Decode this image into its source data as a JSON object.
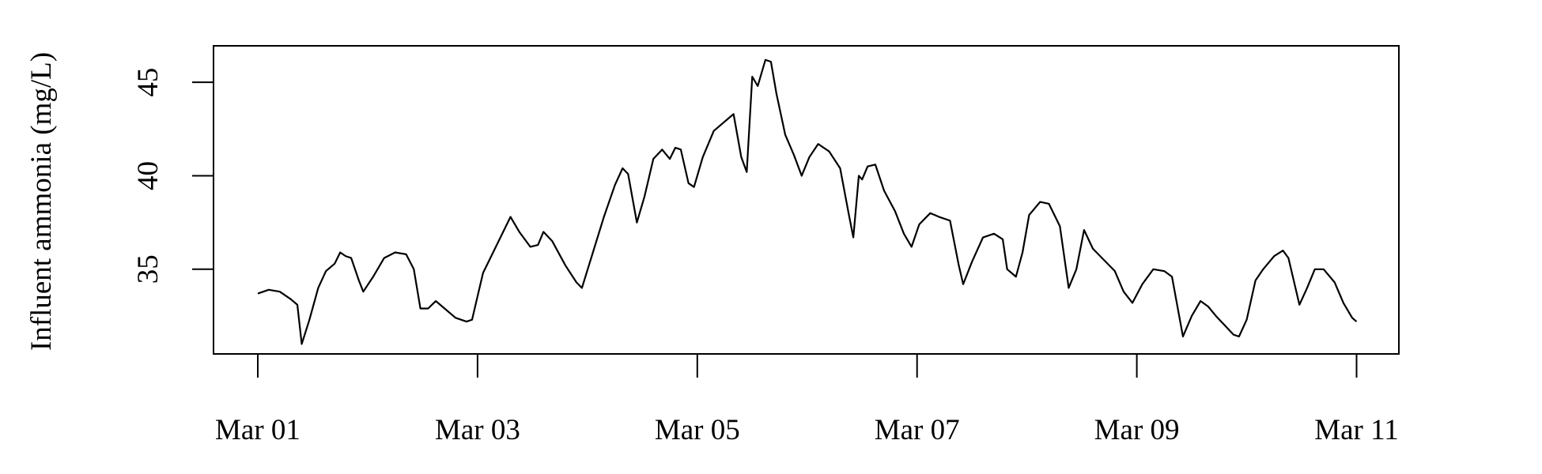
{
  "chart_data": {
    "type": "line",
    "ylabel": "Influent ammonia (mg/L)",
    "color": "#000000",
    "x": [
      1.0,
      1.1,
      1.2,
      1.3,
      1.36,
      1.4,
      1.47,
      1.55,
      1.62,
      1.7,
      1.75,
      1.8,
      1.85,
      1.92,
      1.96,
      2.05,
      2.15,
      2.25,
      2.35,
      2.42,
      2.48,
      2.55,
      2.62,
      2.7,
      2.8,
      2.9,
      2.95,
      3.05,
      3.15,
      3.25,
      3.3,
      3.38,
      3.48,
      3.55,
      3.6,
      3.68,
      3.8,
      3.9,
      3.95,
      4.05,
      4.15,
      4.25,
      4.32,
      4.37,
      4.45,
      4.52,
      4.6,
      4.68,
      4.75,
      4.8,
      4.85,
      4.92,
      4.97,
      5.05,
      5.15,
      5.25,
      5.33,
      5.4,
      5.45,
      5.5,
      5.55,
      5.62,
      5.67,
      5.72,
      5.8,
      5.88,
      5.95,
      6.02,
      6.1,
      6.2,
      6.3,
      6.38,
      6.42,
      6.47,
      6.5,
      6.55,
      6.62,
      6.7,
      6.8,
      6.88,
      6.95,
      7.02,
      7.12,
      7.2,
      7.3,
      7.38,
      7.42,
      7.5,
      7.6,
      7.7,
      7.78,
      7.82,
      7.9,
      7.96,
      8.02,
      8.12,
      8.2,
      8.3,
      8.38,
      8.45,
      8.52,
      8.6,
      8.7,
      8.8,
      8.88,
      8.96,
      9.05,
      9.15,
      9.25,
      9.32,
      9.42,
      9.5,
      9.58,
      9.65,
      9.72,
      9.8,
      9.88,
      9.93,
      10.0,
      10.08,
      10.15,
      10.25,
      10.33,
      10.38,
      10.48,
      10.55,
      10.62,
      10.7,
      10.8,
      10.88,
      10.96,
      11.0
    ],
    "values": [
      33.7,
      33.9,
      33.8,
      33.4,
      33.1,
      31.0,
      32.3,
      34.0,
      34.9,
      35.3,
      35.9,
      35.7,
      35.6,
      34.4,
      33.8,
      34.6,
      35.6,
      35.9,
      35.8,
      35.0,
      32.9,
      32.9,
      33.3,
      32.9,
      32.4,
      32.2,
      32.3,
      34.8,
      36.0,
      37.2,
      37.8,
      37.0,
      36.2,
      36.3,
      37.0,
      36.5,
      35.2,
      34.3,
      34.0,
      35.9,
      37.8,
      39.5,
      40.4,
      40.1,
      37.5,
      38.9,
      40.9,
      41.4,
      40.9,
      41.5,
      41.4,
      39.6,
      39.4,
      41.0,
      42.4,
      42.9,
      43.3,
      41.0,
      40.2,
      45.3,
      44.8,
      46.2,
      46.1,
      44.4,
      42.2,
      41.1,
      40.0,
      41.0,
      41.7,
      41.3,
      40.4,
      37.9,
      36.7,
      40.0,
      39.8,
      40.5,
      40.6,
      39.2,
      38.1,
      36.9,
      36.2,
      37.4,
      38.0,
      37.8,
      37.6,
      35.2,
      34.2,
      35.4,
      36.7,
      36.9,
      36.6,
      35.0,
      34.6,
      35.9,
      37.9,
      38.6,
      38.5,
      37.3,
      34.0,
      35.0,
      37.1,
      36.1,
      35.5,
      34.9,
      33.8,
      33.2,
      34.2,
      35.0,
      34.9,
      34.6,
      31.4,
      32.5,
      33.3,
      33.0,
      32.5,
      32.0,
      31.5,
      31.4,
      32.3,
      34.4,
      35.0,
      35.7,
      36.0,
      35.6,
      33.1,
      34.0,
      35.0,
      35.0,
      34.3,
      33.2,
      32.4,
      32.2
    ],
    "xlim": [
      0.597,
      11.385
    ],
    "ylim": [
      30.47,
      46.95
    ],
    "xticks": [
      {
        "value": 1,
        "label": "Mar 01"
      },
      {
        "value": 3,
        "label": "Mar 03"
      },
      {
        "value": 5,
        "label": "Mar 05"
      },
      {
        "value": 7,
        "label": "Mar 07"
      },
      {
        "value": 9,
        "label": "Mar 09"
      },
      {
        "value": 11,
        "label": "Mar 11"
      }
    ],
    "yticks": [
      35,
      40,
      45
    ]
  }
}
